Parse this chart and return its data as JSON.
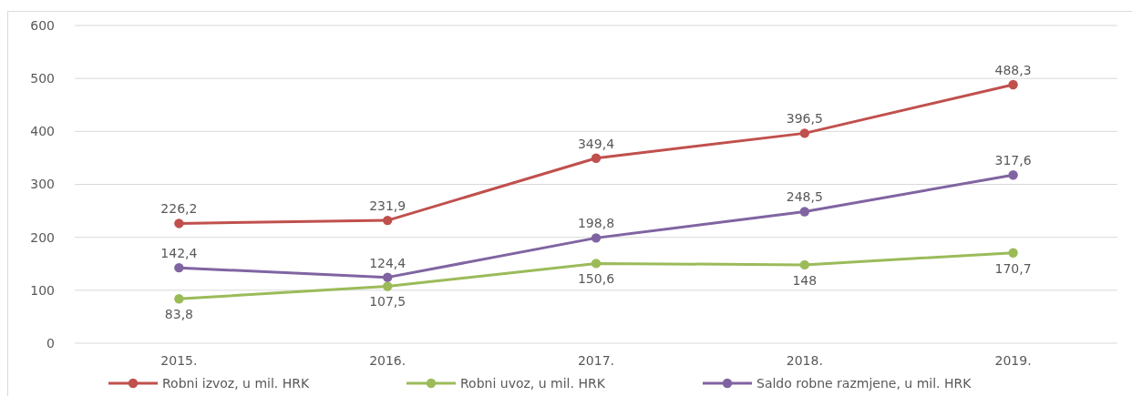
{
  "chart_data": {
    "type": "line",
    "categories": [
      "2015.",
      "2016.",
      "2017.",
      "2018.",
      "2019."
    ],
    "series": [
      {
        "name": "Robni izvoz, u mil. HRK",
        "color": "#c0504d",
        "values": [
          226.2,
          231.9,
          349.4,
          396.5,
          488.3
        ],
        "value_labels": [
          "226,2",
          "231,9",
          "349,4",
          "396,5",
          "488,3"
        ]
      },
      {
        "name": "Robni uvoz, u mil. HRK",
        "color": "#9bbb59",
        "values": [
          83.8,
          107.5,
          150.6,
          148,
          170.7
        ],
        "value_labels": [
          "83,8",
          "107,5",
          "150,6",
          "148",
          "170,7"
        ]
      },
      {
        "name": "Saldo robne razmjene, u mil. HRK",
        "color": "#8064a2",
        "values": [
          142.4,
          124.4,
          198.8,
          248.5,
          317.6
        ],
        "value_labels": [
          "142,4",
          "124,4",
          "198,8",
          "248,5",
          "317,6"
        ]
      }
    ],
    "ylim": [
      0,
      600
    ],
    "yticks": [
      0,
      100,
      200,
      300,
      400,
      500,
      600
    ],
    "grid": "y",
    "legend": "bottom",
    "marker": "circle",
    "line_style": "solid"
  }
}
